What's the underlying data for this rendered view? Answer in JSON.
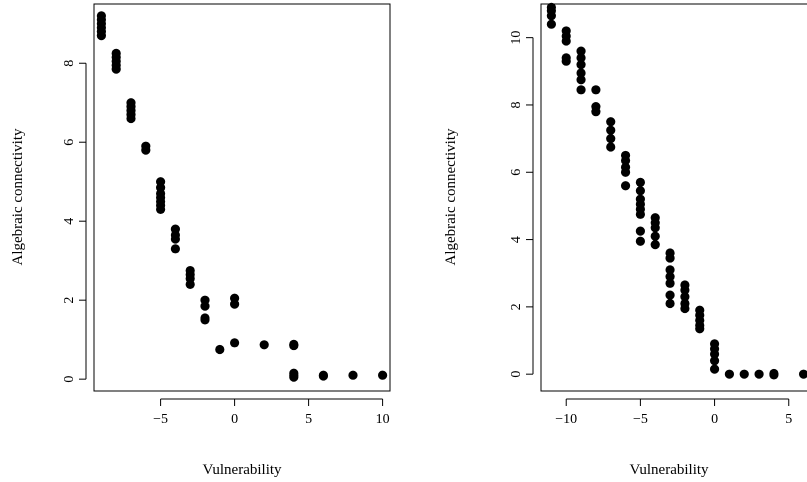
{
  "chart_data": [
    {
      "type": "scatter",
      "title": "",
      "xlabel": "Vulnerability",
      "ylabel": "Algebraic connectivity",
      "xlim": [
        -9.5,
        10.5
      ],
      "ylim": [
        -0.3,
        9.5
      ],
      "xticks": [
        -5,
        0,
        5,
        10
      ],
      "yticks": [
        0,
        2,
        4,
        6,
        8
      ],
      "xtick_labels": [
        "−5",
        "0",
        "5",
        "10"
      ],
      "ytick_labels": [
        "0",
        "2",
        "4",
        "6",
        "8"
      ],
      "grid": false,
      "marker_color": "#000000",
      "points": [
        [
          -9,
          9.2
        ],
        [
          -9,
          9.1
        ],
        [
          -9,
          9.0
        ],
        [
          -9,
          8.9
        ],
        [
          -9,
          8.8
        ],
        [
          -9,
          8.7
        ],
        [
          -8,
          8.25
        ],
        [
          -8,
          8.15
        ],
        [
          -8,
          8.05
        ],
        [
          -8,
          7.95
        ],
        [
          -8,
          7.85
        ],
        [
          -7,
          7.0
        ],
        [
          -7,
          6.9
        ],
        [
          -7,
          6.8
        ],
        [
          -7,
          6.7
        ],
        [
          -7,
          6.6
        ],
        [
          -6,
          5.9
        ],
        [
          -6,
          5.8
        ],
        [
          -5,
          5.0
        ],
        [
          -5,
          4.85
        ],
        [
          -5,
          4.7
        ],
        [
          -5,
          4.6
        ],
        [
          -5,
          4.5
        ],
        [
          -5,
          4.4
        ],
        [
          -5,
          4.3
        ],
        [
          -4,
          3.8
        ],
        [
          -4,
          3.65
        ],
        [
          -4,
          3.55
        ],
        [
          -4,
          3.3
        ],
        [
          -3,
          2.75
        ],
        [
          -3,
          2.65
        ],
        [
          -3,
          2.55
        ],
        [
          -3,
          2.4
        ],
        [
          -2,
          2.0
        ],
        [
          -2,
          1.85
        ],
        [
          -2,
          1.55
        ],
        [
          -2,
          1.5
        ],
        [
          -1,
          0.75
        ],
        [
          0,
          2.05
        ],
        [
          0,
          1.9
        ],
        [
          0,
          0.92
        ],
        [
          2,
          0.87
        ],
        [
          4,
          0.88
        ],
        [
          4,
          0.85
        ],
        [
          4,
          0.15
        ],
        [
          4,
          0.1
        ],
        [
          4,
          0.05
        ],
        [
          6,
          0.1
        ],
        [
          6,
          0.08
        ],
        [
          8,
          0.1
        ],
        [
          10,
          0.1
        ]
      ]
    },
    {
      "type": "scatter",
      "title": "",
      "xlabel": "Vulnerability",
      "ylabel": "Algebraic connectivity",
      "xlim": [
        -11.7,
        6.5
      ],
      "ylim": [
        -0.5,
        11.0
      ],
      "xticks": [
        -10,
        -5,
        0,
        5
      ],
      "yticks": [
        0,
        2,
        4,
        6,
        8,
        10
      ],
      "xtick_labels": [
        "−10",
        "−5",
        "0",
        "5"
      ],
      "ytick_labels": [
        "0",
        "2",
        "4",
        "6",
        "8",
        "10"
      ],
      "grid": false,
      "marker_color": "#000000",
      "points": [
        [
          -11,
          10.9
        ],
        [
          -11,
          10.8
        ],
        [
          -11,
          10.65
        ],
        [
          -11,
          10.4
        ],
        [
          -10,
          10.2
        ],
        [
          -10,
          10.05
        ],
        [
          -10,
          9.9
        ],
        [
          -10,
          9.4
        ],
        [
          -10,
          9.3
        ],
        [
          -9,
          9.6
        ],
        [
          -9,
          9.4
        ],
        [
          -9,
          9.2
        ],
        [
          -9,
          8.95
        ],
        [
          -9,
          8.75
        ],
        [
          -9,
          8.45
        ],
        [
          -8,
          8.45
        ],
        [
          -8,
          7.95
        ],
        [
          -8,
          7.8
        ],
        [
          -7,
          7.5
        ],
        [
          -7,
          7.25
        ],
        [
          -7,
          7.0
        ],
        [
          -7,
          6.75
        ],
        [
          -6,
          6.5
        ],
        [
          -6,
          6.35
        ],
        [
          -6,
          6.15
        ],
        [
          -6,
          6.0
        ],
        [
          -6,
          5.6
        ],
        [
          -5,
          5.7
        ],
        [
          -5,
          5.45
        ],
        [
          -5,
          5.2
        ],
        [
          -5,
          5.05
        ],
        [
          -5,
          4.9
        ],
        [
          -5,
          4.75
        ],
        [
          -5,
          4.25
        ],
        [
          -5,
          3.95
        ],
        [
          -4,
          4.65
        ],
        [
          -4,
          4.5
        ],
        [
          -4,
          4.35
        ],
        [
          -4,
          4.1
        ],
        [
          -4,
          3.85
        ],
        [
          -3,
          3.6
        ],
        [
          -3,
          3.45
        ],
        [
          -3,
          3.1
        ],
        [
          -3,
          2.9
        ],
        [
          -3,
          2.7
        ],
        [
          -3,
          2.35
        ],
        [
          -3,
          2.1
        ],
        [
          -2,
          2.65
        ],
        [
          -2,
          2.5
        ],
        [
          -2,
          2.3
        ],
        [
          -2,
          2.1
        ],
        [
          -2,
          1.95
        ],
        [
          -1,
          1.9
        ],
        [
          -1,
          1.75
        ],
        [
          -1,
          1.6
        ],
        [
          -1,
          1.45
        ],
        [
          -1,
          1.35
        ],
        [
          0,
          0.9
        ],
        [
          0,
          0.75
        ],
        [
          0,
          0.6
        ],
        [
          0,
          0.4
        ],
        [
          0,
          0.15
        ],
        [
          1,
          0.0
        ],
        [
          2,
          0.0
        ],
        [
          3,
          0.0
        ],
        [
          4,
          0.02
        ],
        [
          4,
          -0.02
        ],
        [
          6,
          0.0
        ]
      ]
    }
  ]
}
